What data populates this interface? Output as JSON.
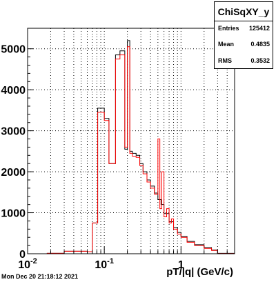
{
  "chart_data": {
    "type": "histogram",
    "title": "ChiSqXY_y",
    "xlabel": "pT/|q| (GeV/c)",
    "ylabel": "",
    "xscale": "log",
    "xlim": [
      0.01,
      5
    ],
    "ylim": [
      0,
      5500
    ],
    "grid": true,
    "x_ticks": [
      "10^-2",
      "10^-1",
      "1"
    ],
    "y_ticks": [
      "0",
      "1000",
      "2000",
      "3000",
      "4000",
      "5000"
    ],
    "series": [
      {
        "color": "#000000",
        "edges": [
          0.01,
          0.018,
          0.025,
          0.03,
          0.04,
          0.05,
          0.06,
          0.07,
          0.082,
          0.1,
          0.115,
          0.14,
          0.16,
          0.185,
          0.2,
          0.215,
          0.232,
          0.26,
          0.29,
          0.32,
          0.36,
          0.4,
          0.45,
          0.5,
          0.55,
          0.6,
          0.7,
          0.8,
          0.9,
          1.0,
          1.2,
          1.5,
          2.0,
          2.5,
          3.0,
          5.0
        ],
        "values": [
          0,
          10,
          10,
          60,
          60,
          60,
          50,
          750,
          3550,
          3300,
          2200,
          4850,
          4950,
          2550,
          5200,
          2500,
          2450,
          2400,
          2200,
          2000,
          1800,
          1650,
          1480,
          1320,
          1200,
          980,
          780,
          640,
          520,
          420,
          300,
          220,
          150,
          90,
          10
        ]
      },
      {
        "color": "#ff0000",
        "edges": [
          0.01,
          0.018,
          0.025,
          0.03,
          0.04,
          0.05,
          0.06,
          0.07,
          0.082,
          0.1,
          0.115,
          0.14,
          0.16,
          0.185,
          0.2,
          0.215,
          0.232,
          0.26,
          0.29,
          0.32,
          0.36,
          0.4,
          0.45,
          0.5,
          0.53,
          0.56,
          0.6,
          0.65,
          0.7,
          0.75,
          0.8,
          0.9,
          1.0,
          1.2,
          1.5,
          2.0,
          2.5,
          3.0,
          5.0
        ],
        "values": [
          0,
          10,
          10,
          60,
          60,
          60,
          50,
          750,
          3450,
          3250,
          2200,
          4750,
          4850,
          2600,
          5050,
          2450,
          2380,
          2350,
          2150,
          1950,
          1750,
          1600,
          1450,
          2800,
          1100,
          2000,
          900,
          1100,
          750,
          850,
          600,
          480,
          400,
          280,
          200,
          130,
          80,
          5
        ]
      }
    ]
  },
  "stats": {
    "title": "ChiSqXY_y",
    "entries_label": "Entries",
    "entries_value": "125412",
    "mean_label": "Mean",
    "mean_value": "0.4835",
    "rms_label": "RMS",
    "rms_value": "0.3532"
  },
  "footer": {
    "timestamp": "Mon Dec 20 21:18:12 2021"
  }
}
